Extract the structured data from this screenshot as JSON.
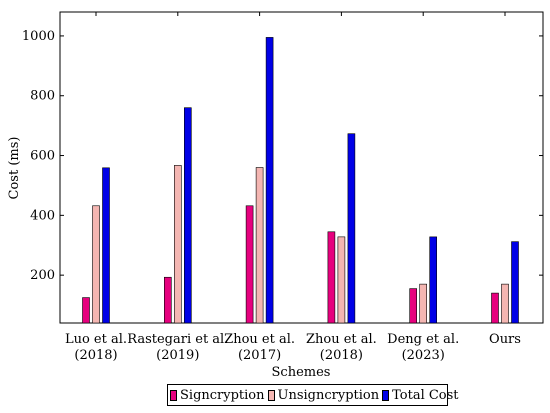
{
  "chart_data": {
    "type": "bar",
    "xlabel": "Schemes",
    "ylabel": "Cost (ms)",
    "ylim": [
      40,
      1080
    ],
    "yticks": [
      200,
      400,
      600,
      800,
      1000
    ],
    "grid": false,
    "legend_position": "bottom",
    "categories": [
      [
        "Luo et al.",
        "(2018)"
      ],
      [
        "Rastegari et al.",
        "(2019)"
      ],
      [
        "Zhou et al.",
        "(2017)"
      ],
      [
        "Zhou et al.",
        "(2018)"
      ],
      [
        "Deng et al.",
        "(2023)"
      ],
      [
        "Ours"
      ]
    ],
    "series": [
      {
        "name": "Signcryption",
        "color": "#e6007e",
        "values": [
          125,
          193,
          432,
          345,
          155,
          140
        ]
      },
      {
        "name": "Unsigncryption",
        "color": "#f4b6b2",
        "values": [
          432,
          567,
          560,
          328,
          170,
          170
        ]
      },
      {
        "name": "Total Cost",
        "color": "#0000e6",
        "values": [
          559,
          760,
          995,
          673,
          328,
          312
        ]
      }
    ]
  }
}
